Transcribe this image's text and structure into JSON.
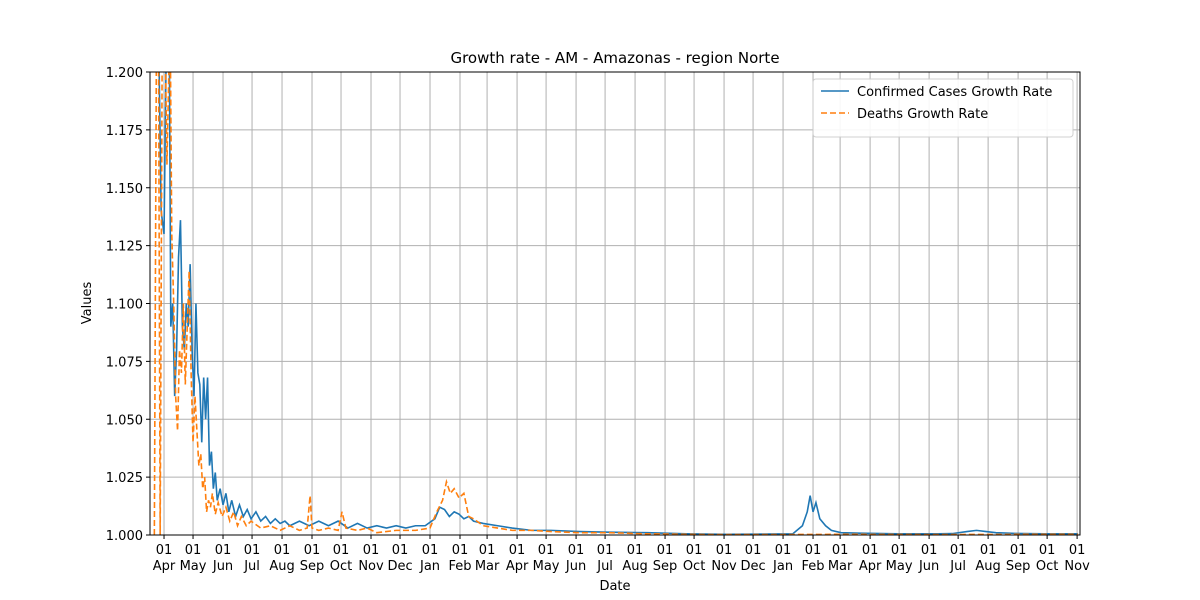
{
  "chart_data": {
    "type": "line",
    "title": "Growth rate - AM - Amazonas - region Norte",
    "xlabel": "Date",
    "ylabel": "Values",
    "xlim": [
      -14.5,
      947
    ],
    "ylim": [
      1.0,
      1.2
    ],
    "xticks": [
      {
        "value": 0,
        "label": "01 Apr"
      },
      {
        "value": 30,
        "label": "01 May"
      },
      {
        "value": 61,
        "label": "01 Jun"
      },
      {
        "value": 91,
        "label": "01 Jul"
      },
      {
        "value": 122,
        "label": "01 Aug"
      },
      {
        "value": 153,
        "label": "01 Sep"
      },
      {
        "value": 183,
        "label": "01 Oct"
      },
      {
        "value": 214,
        "label": "01 Nov"
      },
      {
        "value": 244,
        "label": "01 Dec"
      },
      {
        "value": 275,
        "label": "01 Jan"
      },
      {
        "value": 306,
        "label": "01 Feb"
      },
      {
        "value": 334,
        "label": "01 Mar"
      },
      {
        "value": 365,
        "label": "01 Apr"
      },
      {
        "value": 395,
        "label": "01 May"
      },
      {
        "value": 426,
        "label": "01 Jun"
      },
      {
        "value": 456,
        "label": "01 Jul"
      },
      {
        "value": 487,
        "label": "01 Aug"
      },
      {
        "value": 518,
        "label": "01 Sep"
      },
      {
        "value": 548,
        "label": "01 Oct"
      },
      {
        "value": 579,
        "label": "01 Nov"
      },
      {
        "value": 609,
        "label": "01 Dec"
      },
      {
        "value": 640,
        "label": "01 Jan"
      },
      {
        "value": 671,
        "label": "01 Feb"
      },
      {
        "value": 699,
        "label": "01 Mar"
      },
      {
        "value": 730,
        "label": "01 Apr"
      },
      {
        "value": 760,
        "label": "01 May"
      },
      {
        "value": 791,
        "label": "01 Jun"
      },
      {
        "value": 821,
        "label": "01 Jul"
      },
      {
        "value": 852,
        "label": "01 Aug"
      },
      {
        "value": 883,
        "label": "01 Sep"
      },
      {
        "value": 913,
        "label": "01 Oct"
      },
      {
        "value": 944,
        "label": "01 Nov"
      }
    ],
    "yticks": [
      {
        "value": 1.0,
        "label": "1.000"
      },
      {
        "value": 1.025,
        "label": "1.025"
      },
      {
        "value": 1.05,
        "label": "1.050"
      },
      {
        "value": 1.075,
        "label": "1.075"
      },
      {
        "value": 1.1,
        "label": "1.100"
      },
      {
        "value": 1.125,
        "label": "1.125"
      },
      {
        "value": 1.15,
        "label": "1.150"
      },
      {
        "value": 1.175,
        "label": "1.175"
      },
      {
        "value": 1.2,
        "label": "1.200"
      }
    ],
    "grid": true,
    "legend": "upper right",
    "series": [
      {
        "name": "Confirmed Cases Growth Rate",
        "color": "#1f77b4",
        "dash": "solid",
        "x": [
          -8,
          -5,
          -3,
          0,
          2,
          5,
          7,
          9,
          11,
          13,
          15,
          17,
          19,
          21,
          23,
          25,
          27,
          29,
          31,
          33,
          35,
          37,
          39,
          41,
          43,
          45,
          47,
          49,
          51,
          53,
          55,
          58,
          61,
          64,
          67,
          70,
          74,
          78,
          82,
          86,
          90,
          95,
          100,
          105,
          110,
          115,
          120,
          125,
          130,
          140,
          150,
          160,
          170,
          180,
          190,
          200,
          210,
          220,
          230,
          240,
          250,
          260,
          270,
          280,
          285,
          290,
          295,
          300,
          305,
          310,
          315,
          320,
          330,
          345,
          360,
          380,
          400,
          430,
          460,
          500,
          540,
          580,
          620,
          650,
          660,
          665,
          668,
          671,
          674,
          678,
          684,
          690,
          700,
          720,
          760,
          800,
          815,
          830,
          840,
          850,
          860,
          880,
          910,
          945
        ],
        "values": [
          1.25,
          1.2,
          1.14,
          1.13,
          1.2,
          1.25,
          1.09,
          1.1,
          1.06,
          1.08,
          1.12,
          1.136,
          1.09,
          1.08,
          1.1,
          1.09,
          1.117,
          1.08,
          1.06,
          1.1,
          1.07,
          1.065,
          1.04,
          1.068,
          1.05,
          1.068,
          1.03,
          1.036,
          1.02,
          1.027,
          1.015,
          1.02,
          1.013,
          1.018,
          1.01,
          1.015,
          1.008,
          1.013,
          1.008,
          1.011,
          1.007,
          1.01,
          1.006,
          1.008,
          1.005,
          1.007,
          1.005,
          1.006,
          1.004,
          1.006,
          1.004,
          1.006,
          1.004,
          1.006,
          1.003,
          1.005,
          1.003,
          1.004,
          1.003,
          1.004,
          1.003,
          1.004,
          1.004,
          1.007,
          1.012,
          1.011,
          1.008,
          1.01,
          1.009,
          1.007,
          1.008,
          1.006,
          1.005,
          1.004,
          1.003,
          1.002,
          1.002,
          1.0015,
          1.0012,
          1.001,
          1.0005,
          1.0003,
          1.0004,
          1.0005,
          1.004,
          1.01,
          1.017,
          1.01,
          1.014,
          1.007,
          1.004,
          1.002,
          1.001,
          1.0008,
          1.0005,
          1.0005,
          1.0006,
          1.0015,
          1.002,
          1.0015,
          1.001,
          1.0007,
          1.0005,
          1.0005
        ]
      },
      {
        "name": "Deaths Growth Rate",
        "color": "#ff7f0e",
        "dash": "dashed",
        "x": [
          -10,
          -8,
          -6,
          -4,
          -2,
          0,
          3,
          5,
          6,
          8,
          10,
          12,
          14,
          16,
          18,
          20,
          22,
          24,
          26,
          28,
          30,
          32,
          34,
          36,
          38,
          40,
          42,
          44,
          46,
          48,
          50,
          53,
          56,
          60,
          64,
          68,
          72,
          76,
          80,
          85,
          90,
          100,
          110,
          120,
          130,
          140,
          148,
          151,
          153,
          160,
          170,
          180,
          184,
          188,
          200,
          210,
          220,
          240,
          260,
          275,
          282,
          288,
          292,
          296,
          300,
          305,
          310,
          315,
          320,
          330,
          345,
          360,
          380,
          400,
          430,
          460,
          500,
          560,
          640,
          700,
          800,
          900,
          945
        ],
        "values": [
          1.0,
          1.2,
          1.25,
          1.0,
          1.2,
          1.25,
          1.16,
          1.2,
          1.24,
          1.13,
          1.1,
          1.06,
          1.045,
          1.08,
          1.07,
          1.1,
          1.065,
          1.09,
          1.114,
          1.07,
          1.04,
          1.06,
          1.045,
          1.03,
          1.035,
          1.02,
          1.025,
          1.01,
          1.015,
          1.012,
          1.018,
          1.009,
          1.014,
          1.008,
          1.012,
          1.006,
          1.01,
          1.004,
          1.008,
          1.004,
          1.006,
          1.003,
          1.004,
          1.002,
          1.004,
          1.002,
          1.003,
          1.017,
          1.003,
          1.002,
          1.003,
          1.002,
          1.01,
          1.003,
          1.002,
          1.003,
          1.001,
          1.002,
          1.002,
          1.003,
          1.01,
          1.015,
          1.023,
          1.018,
          1.02,
          1.016,
          1.018,
          1.008,
          1.007,
          1.004,
          1.003,
          1.002,
          1.002,
          1.0015,
          1.001,
          1.001,
          1.0005,
          1.0002,
          1.0002,
          1.0003,
          1.0002,
          1.0003,
          1.0003
        ]
      }
    ]
  }
}
